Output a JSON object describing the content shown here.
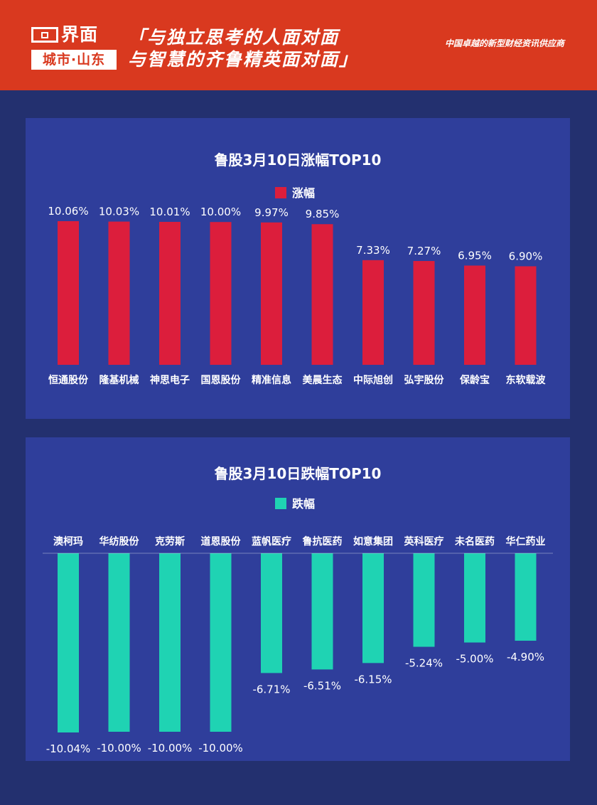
{
  "header": {
    "logo_brand": "界面",
    "logo_city": "城市·山东",
    "slogan_line1": "「与独立思考的人面对面",
    "slogan_line2": "与智慧的齐鲁精英面对面」",
    "tagline": "中国卓越的新型财经资讯供应商"
  },
  "colors": {
    "header_bg": "#d9391f",
    "page_bg": "#23306f",
    "panel_bg": "#2f3e9b",
    "up_bar": "#dc1e3c",
    "down_bar": "#1fd3b3"
  },
  "chart_data": [
    {
      "type": "bar",
      "title": "鲁股3月10日涨幅TOP10",
      "series": [
        {
          "name": "涨幅",
          "values": [
            10.06,
            10.03,
            10.01,
            10.0,
            9.97,
            9.85,
            7.33,
            7.27,
            6.95,
            6.9
          ],
          "labels": [
            "10.06%",
            "10.03%",
            "10.01%",
            "10.00%",
            "9.97%",
            "9.85%",
            "7.33%",
            "7.27%",
            "6.95%",
            "6.90%"
          ]
        }
      ],
      "categories": [
        "恒通股份",
        "隆基机械",
        "神思电子",
        "国恩股份",
        "精准信息",
        "美晨生态",
        "中际旭创",
        "弘宇股份",
        "保龄宝",
        "东软载波"
      ],
      "ylim": [
        0,
        10.06
      ],
      "legend": "top-center",
      "grid": false
    },
    {
      "type": "bar",
      "title": "鲁股3月10日跌幅TOP10",
      "series": [
        {
          "name": "跌幅",
          "values": [
            -10.04,
            -10.0,
            -10.0,
            -10.0,
            -6.71,
            -6.51,
            -6.15,
            -5.24,
            -5.0,
            -4.9
          ],
          "labels": [
            "-10.04%",
            "-10.00%",
            "-10.00%",
            "-10.00%",
            "-6.71%",
            "-6.51%",
            "-6.15%",
            "-5.24%",
            "-5.00%",
            "-4.90%"
          ]
        }
      ],
      "categories": [
        "澳柯玛",
        "华纺股份",
        "克劳斯",
        "道恩股份",
        "蓝帆医疗",
        "鲁抗医药",
        "如意集团",
        "英科医疗",
        "未名医药",
        "华仁药业"
      ],
      "ylim": [
        -10.04,
        0
      ],
      "legend": "top-center",
      "grid": false
    }
  ]
}
